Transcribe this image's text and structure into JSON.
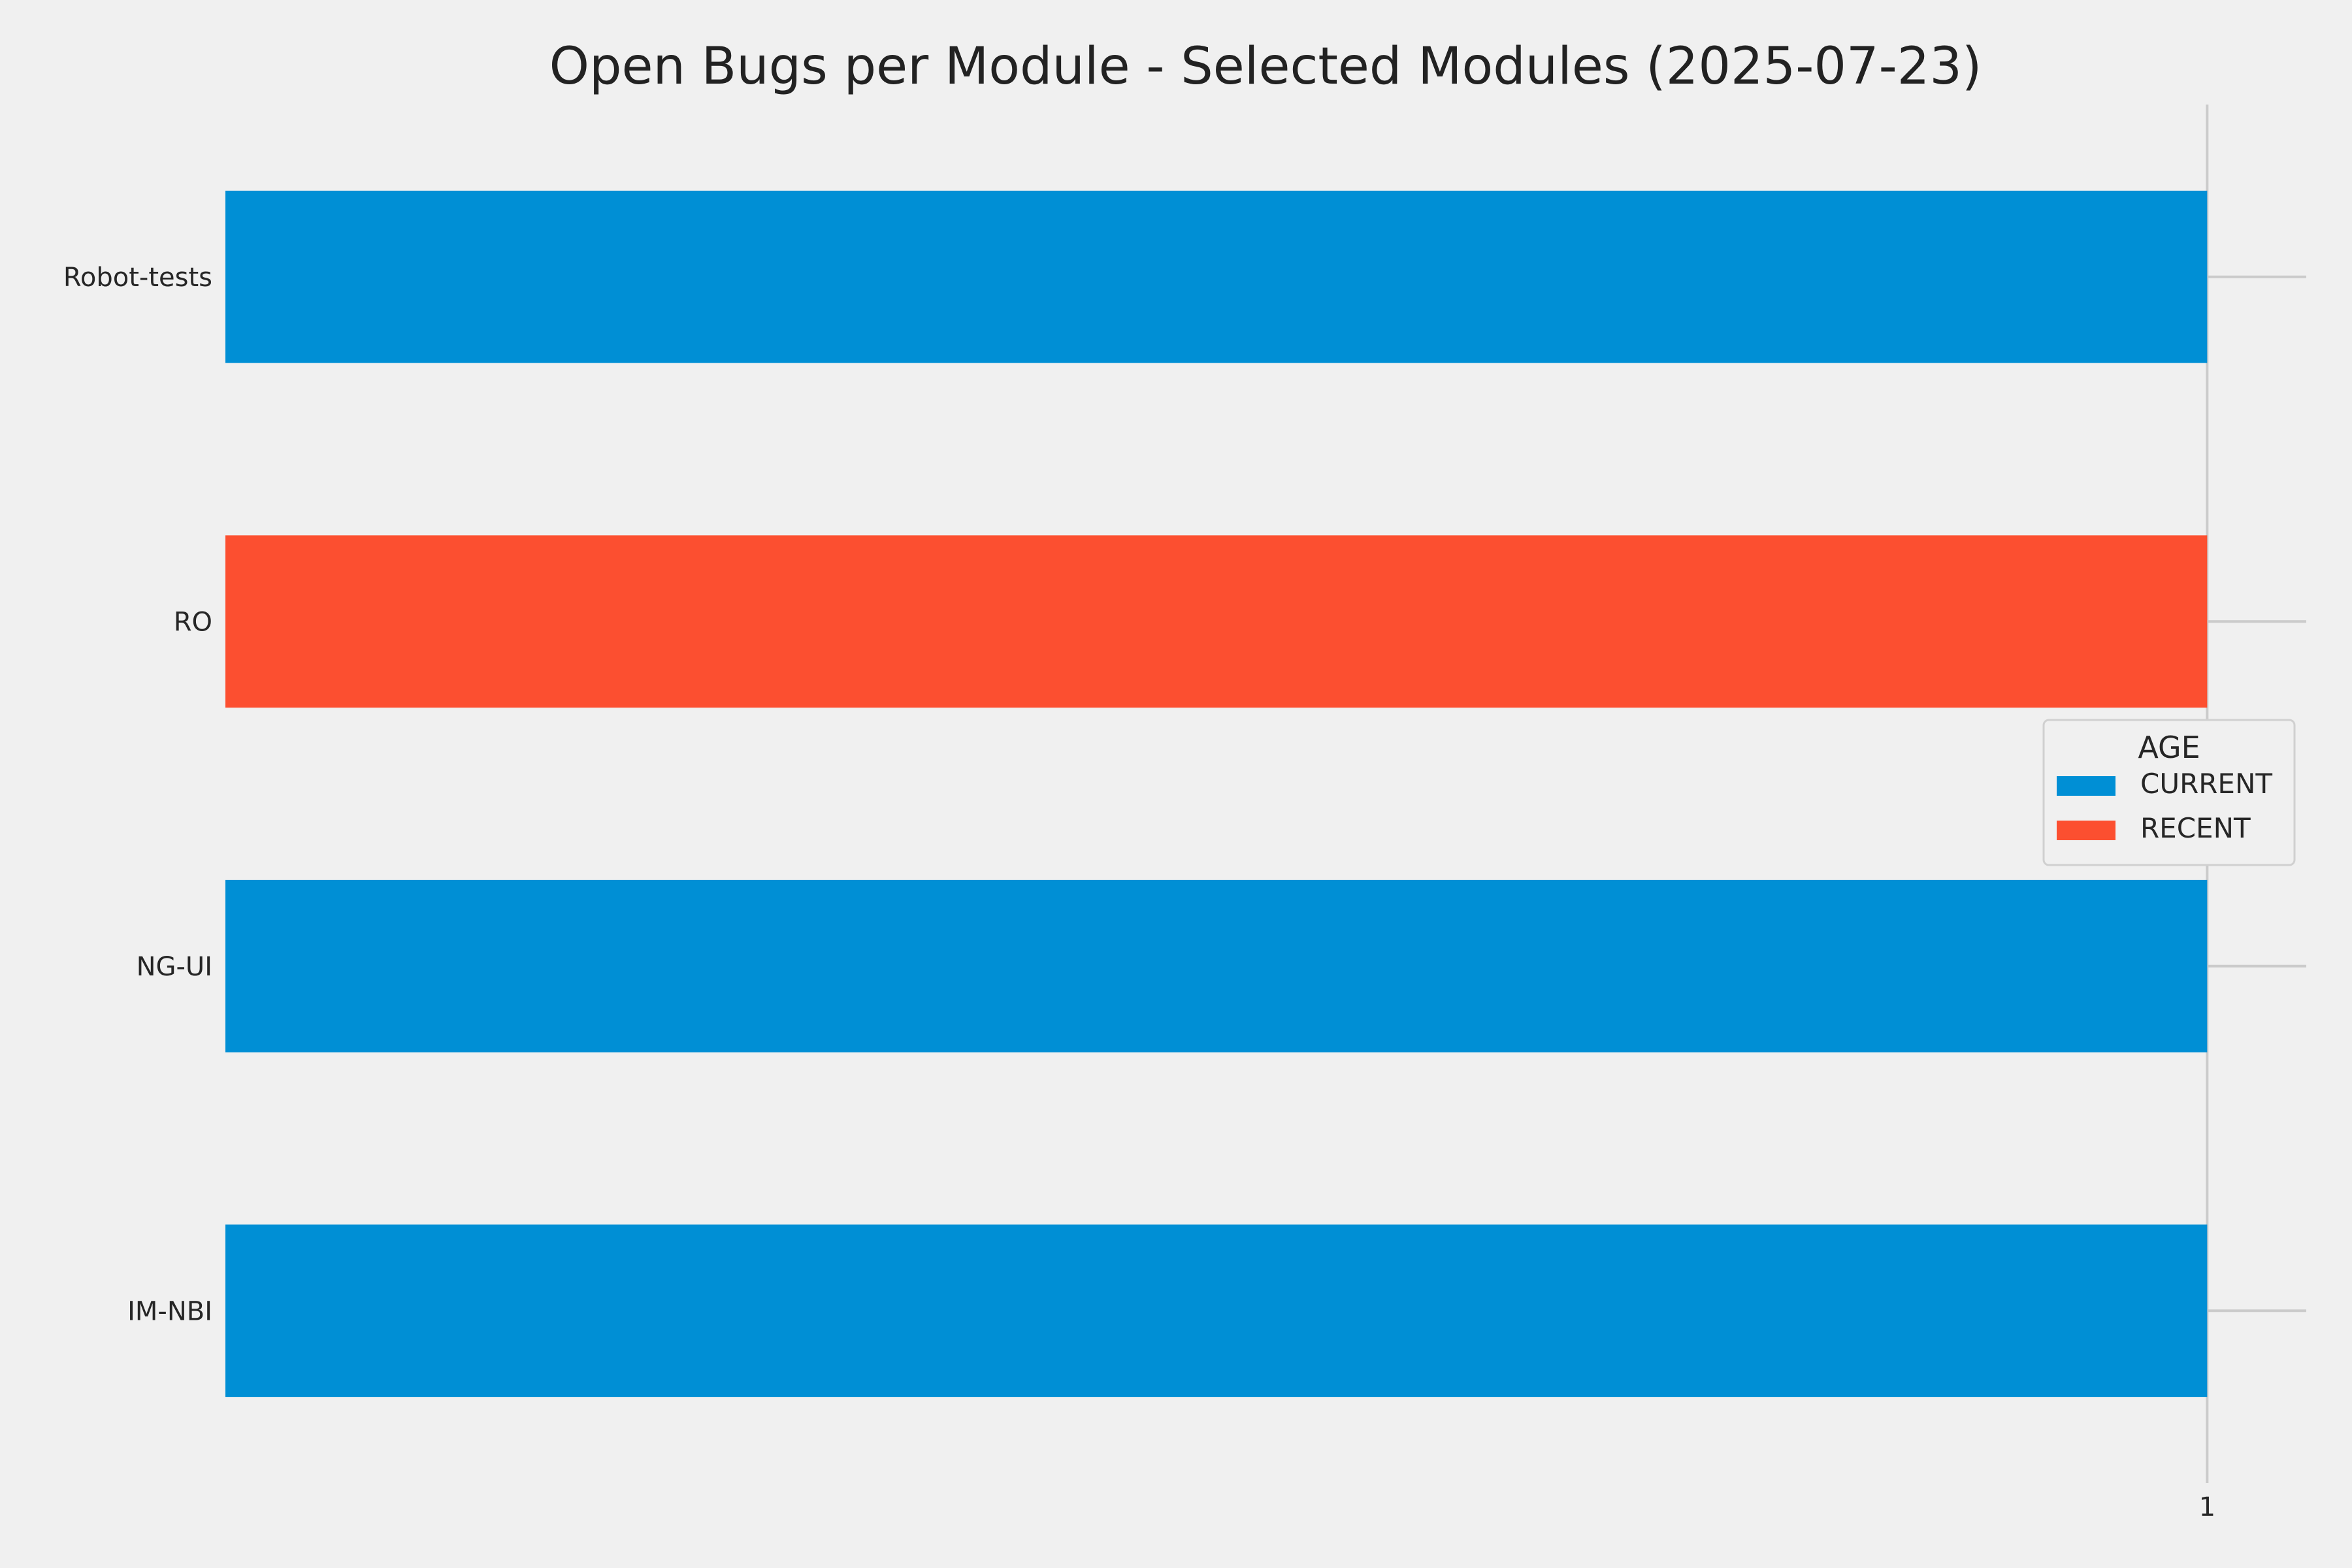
{
  "chart_data": {
    "type": "bar",
    "orientation": "horizontal",
    "title": "Open Bugs per Module - Selected Modules (2025-07-23)",
    "xlabel": "",
    "ylabel": "",
    "categories": [
      "Robot-tests",
      "RO",
      "NG-UI",
      "IM-NBI"
    ],
    "values": [
      1,
      1,
      1,
      1
    ],
    "bar_age": [
      "CURRENT",
      "RECENT",
      "CURRENT",
      "CURRENT"
    ],
    "xlim": [
      0,
      1.05
    ],
    "x_ticks": [
      1
    ],
    "x_tick_labels": [
      "1"
    ],
    "grid": true,
    "legend": {
      "title": "AGE",
      "placement": "center-right",
      "entries": [
        {
          "label": "CURRENT",
          "color": "#008fd5"
        },
        {
          "label": "RECENT",
          "color": "#fc4f30"
        }
      ]
    },
    "colors": {
      "CURRENT": "#008fd5",
      "RECENT": "#fc4f30",
      "background": "#f0f0f0",
      "grid": "#cbcbcb"
    }
  }
}
